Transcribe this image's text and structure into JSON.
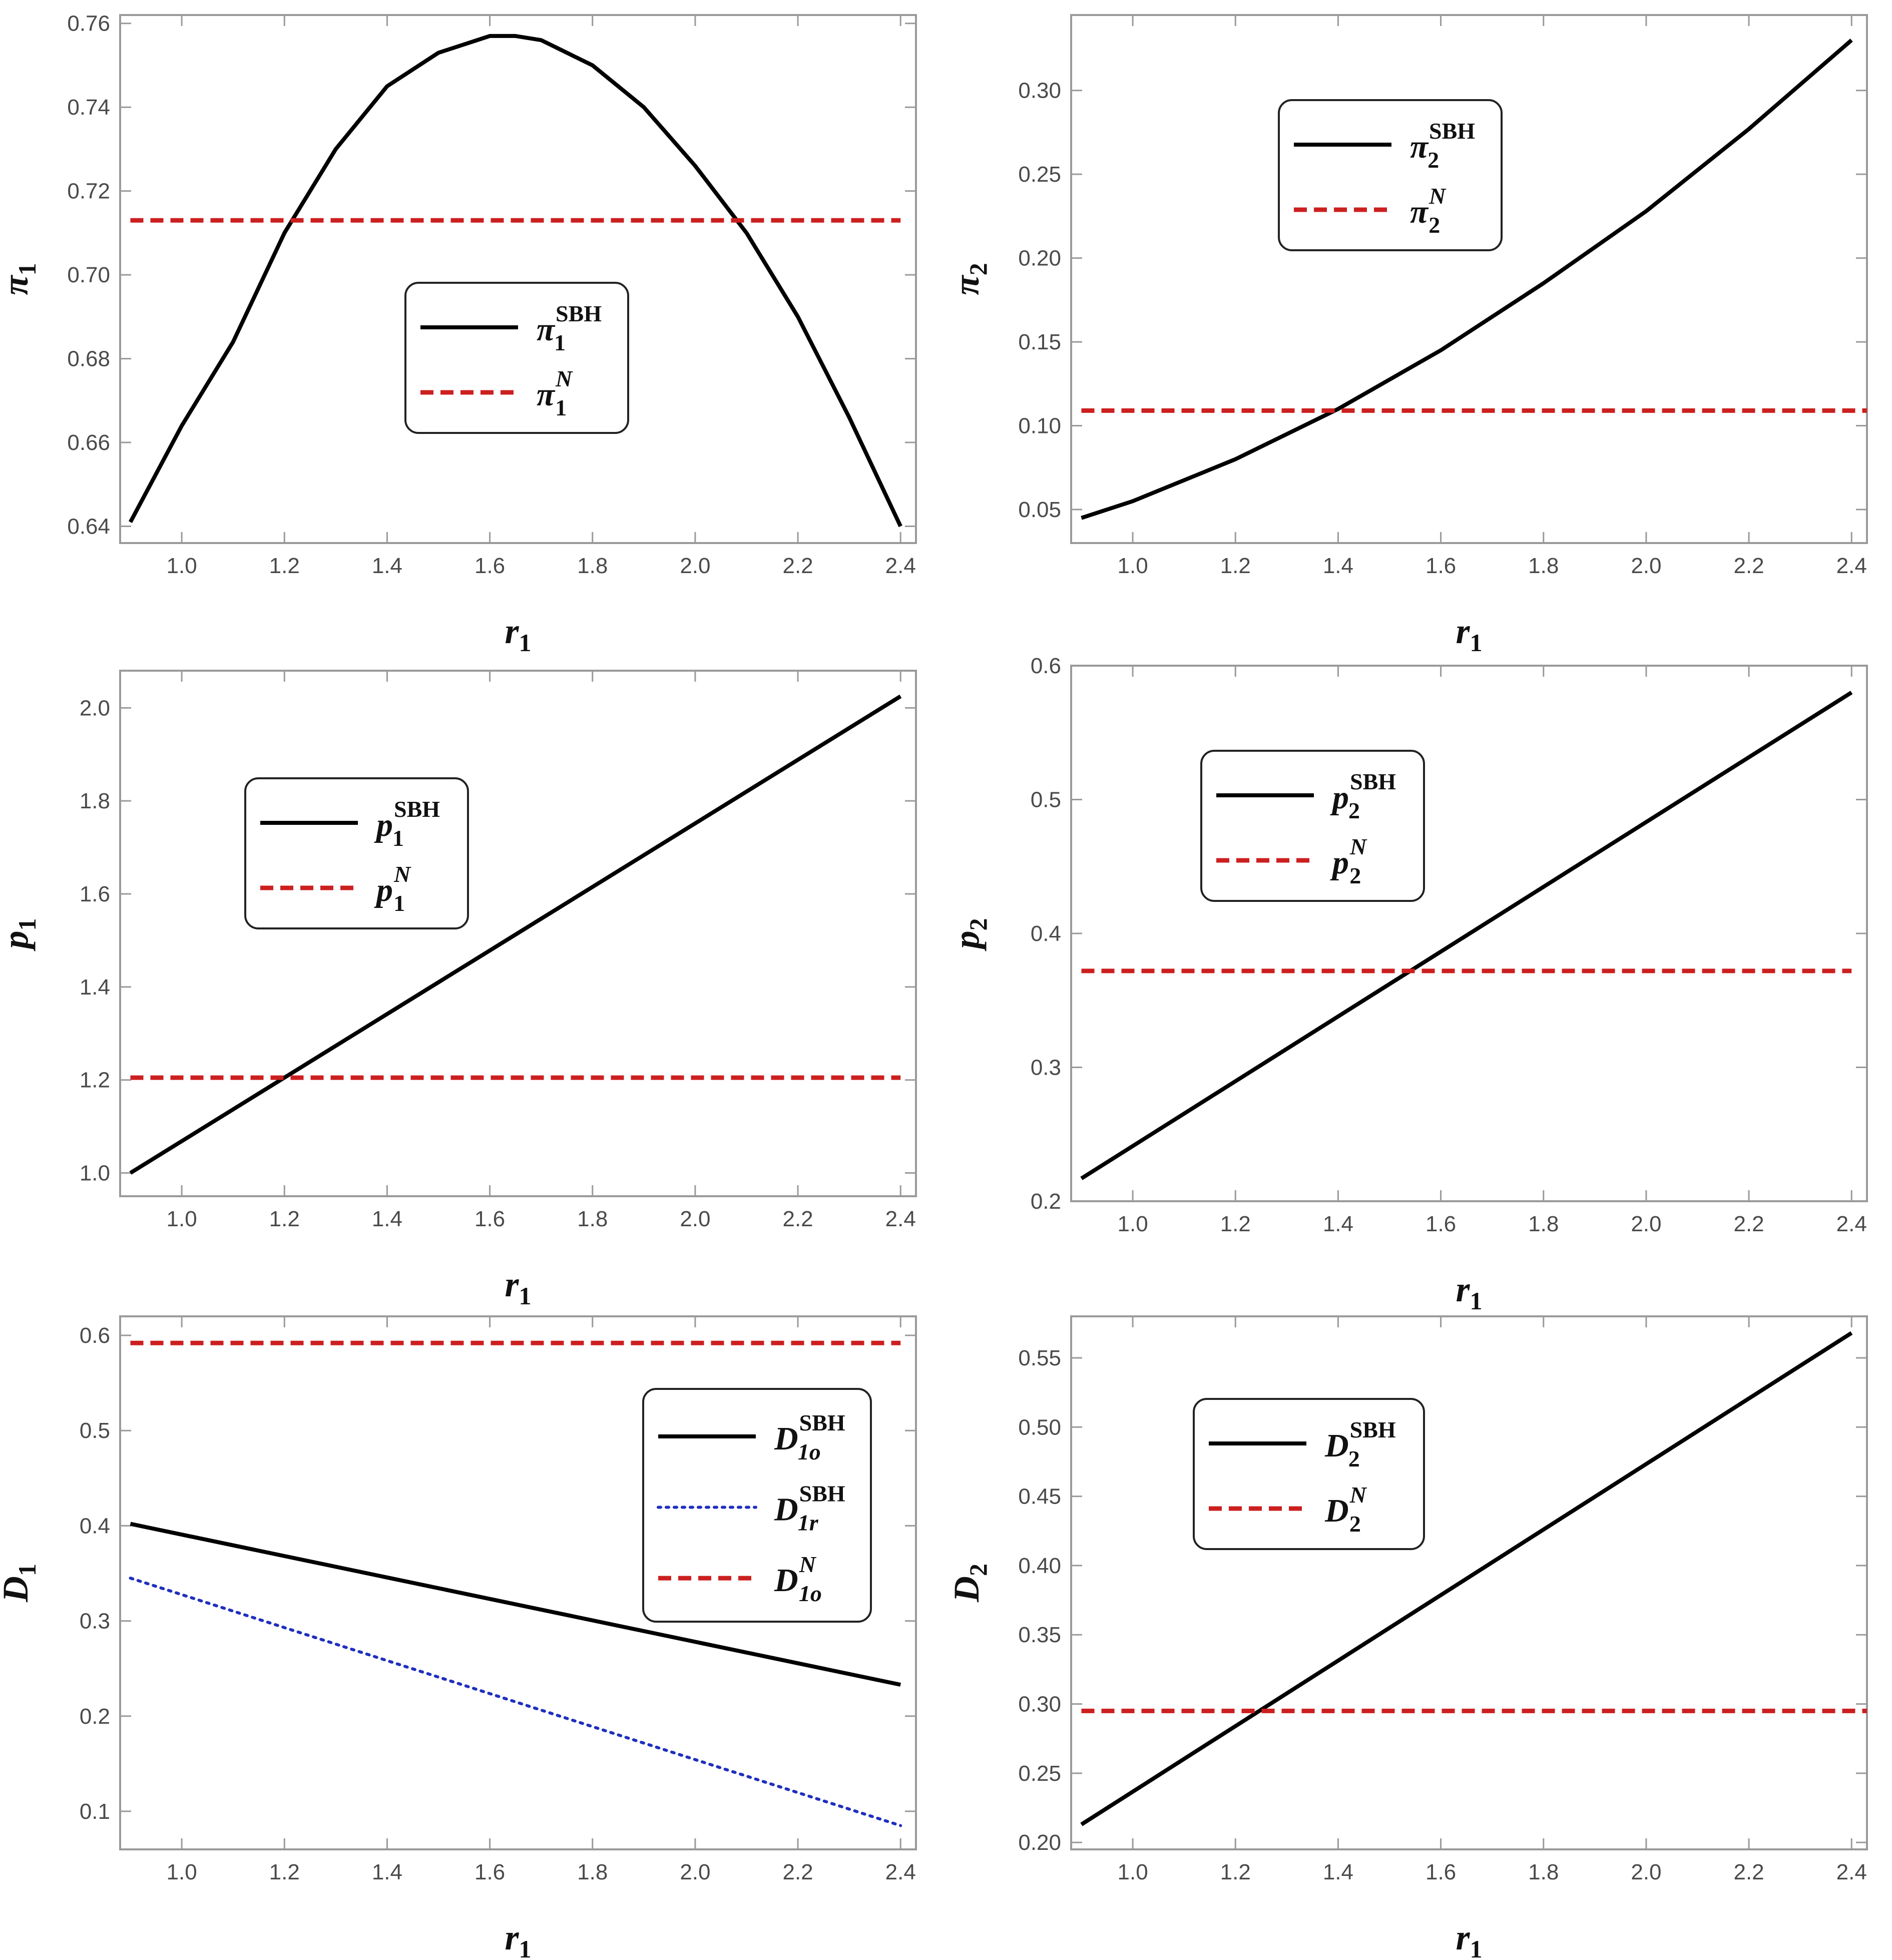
{
  "chart_data": [
    {
      "type": "line",
      "xlabel": "r",
      "xlabel_sub": "1",
      "ylabel": "π",
      "ylabel_sub": "1",
      "xlim": [
        0.88,
        2.43
      ],
      "ylim": [
        0.636,
        0.762
      ],
      "xticks": [
        "1.0",
        "1.2",
        "1.4",
        "1.6",
        "1.8",
        "2.0",
        "2.2",
        "2.4"
      ],
      "yticks": [
        "0.64",
        "0.66",
        "0.68",
        "0.70",
        "0.72",
        "0.74",
        "0.76"
      ],
      "legend": "center",
      "series": [
        {
          "name": "π",
          "name_sub": "1",
          "name_sup": "SBH",
          "style": "solid",
          "color": "#000000",
          "x": [
            0.9,
            1.0,
            1.1,
            1.2,
            1.3,
            1.4,
            1.5,
            1.6,
            1.65,
            1.7,
            1.8,
            1.9,
            2.0,
            2.1,
            2.2,
            2.3,
            2.4
          ],
          "y": [
            0.641,
            0.664,
            0.684,
            0.71,
            0.73,
            0.745,
            0.753,
            0.757,
            0.757,
            0.756,
            0.75,
            0.74,
            0.726,
            0.71,
            0.69,
            0.666,
            0.64
          ]
        },
        {
          "name": "π",
          "name_sub": "1",
          "name_sup": "N",
          "style": "dashed",
          "color": "#cc1f1f",
          "x": [
            0.9,
            2.4
          ],
          "y": [
            0.713,
            0.713
          ]
        }
      ]
    },
    {
      "type": "line",
      "xlabel": "r",
      "xlabel_sub": "1",
      "ylabel": "π",
      "ylabel_sub": "2",
      "xlim": [
        0.88,
        2.43
      ],
      "ylim": [
        0.03,
        0.345
      ],
      "xticks": [
        "1.0",
        "1.2",
        "1.4",
        "1.6",
        "1.8",
        "2.0",
        "2.2",
        "2.4"
      ],
      "yticks": [
        "0.05",
        "0.10",
        "0.15",
        "0.20",
        "0.25",
        "0.30"
      ],
      "legend": "top-left",
      "series": [
        {
          "name": "π",
          "name_sub": "2",
          "name_sup": "SBH",
          "style": "solid",
          "color": "#000000",
          "x": [
            0.9,
            1.0,
            1.2,
            1.4,
            1.6,
            1.8,
            2.0,
            2.2,
            2.4
          ],
          "y": [
            0.045,
            0.055,
            0.08,
            0.11,
            0.145,
            0.185,
            0.228,
            0.277,
            0.33
          ]
        },
        {
          "name": "π",
          "name_sub": "2",
          "name_sup": "N",
          "style": "dashed",
          "color": "#cc1f1f",
          "x": [
            0.9,
            2.43
          ],
          "y": [
            0.109,
            0.109
          ]
        }
      ]
    },
    {
      "type": "line",
      "xlabel": "r",
      "xlabel_sub": "1",
      "ylabel": "p",
      "ylabel_sub": "1",
      "xlim": [
        0.88,
        2.43
      ],
      "ylim": [
        0.95,
        2.08
      ],
      "xticks": [
        "1.0",
        "1.2",
        "1.4",
        "1.6",
        "1.8",
        "2.0",
        "2.2",
        "2.4"
      ],
      "yticks": [
        "1.0",
        "1.2",
        "1.4",
        "1.6",
        "1.8",
        "2.0"
      ],
      "legend": "top-left",
      "series": [
        {
          "name": "p",
          "name_sub": "1",
          "name_sup": "SBH",
          "style": "solid",
          "color": "#000000",
          "x": [
            0.9,
            2.4
          ],
          "y": [
            1.0,
            2.025
          ]
        },
        {
          "name": "p",
          "name_sub": "1",
          "name_sup": "N",
          "style": "dashed",
          "color": "#cc1f1f",
          "x": [
            0.9,
            2.4
          ],
          "y": [
            1.205,
            1.205
          ]
        }
      ]
    },
    {
      "type": "line",
      "xlabel": "r",
      "xlabel_sub": "1",
      "ylabel": "p",
      "ylabel_sub": "2",
      "xlim": [
        0.88,
        2.43
      ],
      "ylim": [
        0.2,
        0.6
      ],
      "xticks": [
        "1.0",
        "1.2",
        "1.4",
        "1.6",
        "1.8",
        "2.0",
        "2.2",
        "2.4"
      ],
      "yticks": [
        "0.2",
        "0.3",
        "0.4",
        "0.5",
        "0.6"
      ],
      "legend": "top-left",
      "series": [
        {
          "name": "p",
          "name_sub": "2",
          "name_sup": "SBH",
          "style": "solid",
          "color": "#000000",
          "x": [
            0.9,
            2.4
          ],
          "y": [
            0.217,
            0.58
          ]
        },
        {
          "name": "p",
          "name_sub": "2",
          "name_sup": "N",
          "style": "dashed",
          "color": "#cc1f1f",
          "x": [
            0.9,
            2.4
          ],
          "y": [
            0.372,
            0.372
          ]
        }
      ]
    },
    {
      "type": "line",
      "xlabel": "r",
      "xlabel_sub": "1",
      "ylabel": "D",
      "ylabel_sub": "1",
      "xlim": [
        0.88,
        2.43
      ],
      "ylim": [
        0.06,
        0.62
      ],
      "xticks": [
        "1.0",
        "1.2",
        "1.4",
        "1.6",
        "1.8",
        "2.0",
        "2.2",
        "2.4"
      ],
      "yticks": [
        "0.1",
        "0.2",
        "0.3",
        "0.4",
        "0.5",
        "0.6"
      ],
      "legend": "top-right",
      "series": [
        {
          "name": "D",
          "name_sub": "1o",
          "name_sup": "SBH",
          "style": "solid",
          "color": "#000000",
          "x": [
            0.9,
            2.4
          ],
          "y": [
            0.402,
            0.233
          ]
        },
        {
          "name": "D",
          "name_sub": "1r",
          "name_sup": "SBH",
          "style": "dotted",
          "color": "#1f2fbf",
          "x": [
            0.9,
            2.4
          ],
          "y": [
            0.345,
            0.085
          ]
        },
        {
          "name": "D",
          "name_sub": "1o",
          "name_sup": "N",
          "style": "dashed",
          "color": "#cc1f1f",
          "x": [
            0.9,
            2.4
          ],
          "y": [
            0.592,
            0.592
          ]
        }
      ]
    },
    {
      "type": "line",
      "xlabel": "r",
      "xlabel_sub": "1",
      "ylabel": "D",
      "ylabel_sub": "2",
      "xlim": [
        0.88,
        2.43
      ],
      "ylim": [
        0.195,
        0.58
      ],
      "xticks": [
        "1.0",
        "1.2",
        "1.4",
        "1.6",
        "1.8",
        "2.0",
        "2.2",
        "2.4"
      ],
      "yticks": [
        "0.20",
        "0.25",
        "0.30",
        "0.35",
        "0.40",
        "0.45",
        "0.50",
        "0.55"
      ],
      "legend": "top-left",
      "series": [
        {
          "name": "D",
          "name_sub": "2",
          "name_sup": "SBH",
          "style": "solid",
          "color": "#000000",
          "x": [
            0.9,
            2.4
          ],
          "y": [
            0.213,
            0.568
          ]
        },
        {
          "name": "D",
          "name_sub": "2",
          "name_sup": "N",
          "style": "dashed",
          "color": "#cc1f1f",
          "x": [
            0.9,
            2.43
          ],
          "y": [
            0.295,
            0.295
          ]
        }
      ]
    }
  ]
}
